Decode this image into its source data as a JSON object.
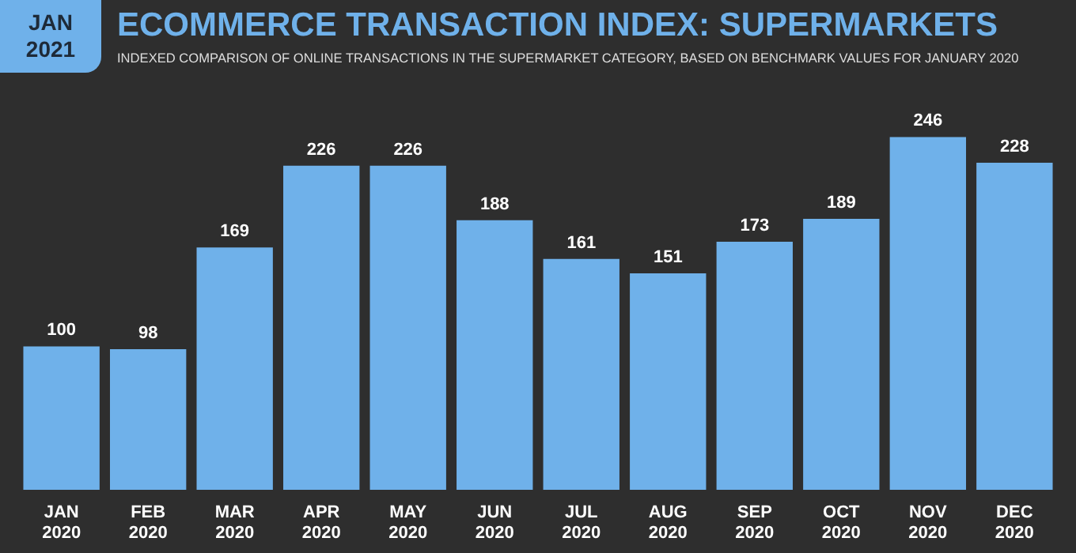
{
  "chart_data": {
    "type": "bar",
    "title": "ECOMMERCE TRANSACTION INDEX: SUPERMARKETS",
    "subtitle": "INDEXED COMPARISON OF ONLINE TRANSACTIONS IN THE SUPERMARKET CATEGORY, BASED ON BENCHMARK VALUES FOR JANUARY 2020",
    "annotations": [
      "JAN 2021"
    ],
    "categories": [
      "JAN 2020",
      "FEB 2020",
      "MAR 2020",
      "APR 2020",
      "MAY 2020",
      "JUN 2020",
      "JUL 2020",
      "AUG 2020",
      "SEP 2020",
      "OCT 2020",
      "NOV 2020",
      "DEC 2020"
    ],
    "values": [
      100,
      98,
      169,
      226,
      226,
      188,
      161,
      151,
      173,
      189,
      246,
      228
    ],
    "color": "#6fb1ea",
    "data_labels": true
  }
}
